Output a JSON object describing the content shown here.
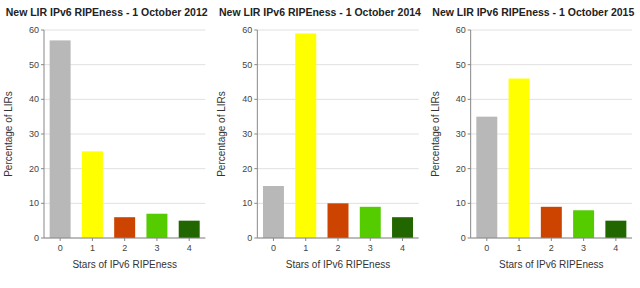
{
  "chart_data": [
    {
      "type": "bar",
      "title": "New LIR IPv6 RIPEness - 1 October 2012",
      "xlabel": "Stars of IPv6 RIPEness",
      "ylabel": "Percentage of LIRs",
      "categories": [
        0,
        1,
        2,
        3,
        4
      ],
      "values": [
        57,
        25,
        6,
        7,
        5
      ],
      "colors": [
        "#b8b8b8",
        "#ffff00",
        "#cc4400",
        "#55cc00",
        "#226600"
      ],
      "ylim": [
        0,
        60
      ],
      "yticks": [
        0,
        10,
        20,
        30,
        40,
        50,
        60
      ],
      "grid": true
    },
    {
      "type": "bar",
      "title": "New LIR IPv6 RIPEness - 1 October 2014",
      "xlabel": "Stars of IPv6 RIPEness",
      "ylabel": "Percentage of LIRs",
      "categories": [
        0,
        1,
        2,
        3,
        4
      ],
      "values": [
        15,
        59,
        10,
        9,
        6
      ],
      "colors": [
        "#b8b8b8",
        "#ffff00",
        "#cc4400",
        "#55cc00",
        "#226600"
      ],
      "ylim": [
        0,
        60
      ],
      "yticks": [
        0,
        10,
        20,
        30,
        40,
        50,
        60
      ],
      "grid": true
    },
    {
      "type": "bar",
      "title": "New LIR IPv6 RIPEness - 1 October 2015",
      "xlabel": "Stars of IPv6 RIPEness",
      "ylabel": "Percentage of LIRs",
      "categories": [
        0,
        1,
        2,
        3,
        4
      ],
      "values": [
        35,
        46,
        9,
        8,
        5
      ],
      "colors": [
        "#b8b8b8",
        "#ffff00",
        "#cc4400",
        "#55cc00",
        "#226600"
      ],
      "ylim": [
        0,
        60
      ],
      "yticks": [
        0,
        10,
        20,
        30,
        40,
        50,
        60
      ],
      "grid": true
    }
  ]
}
